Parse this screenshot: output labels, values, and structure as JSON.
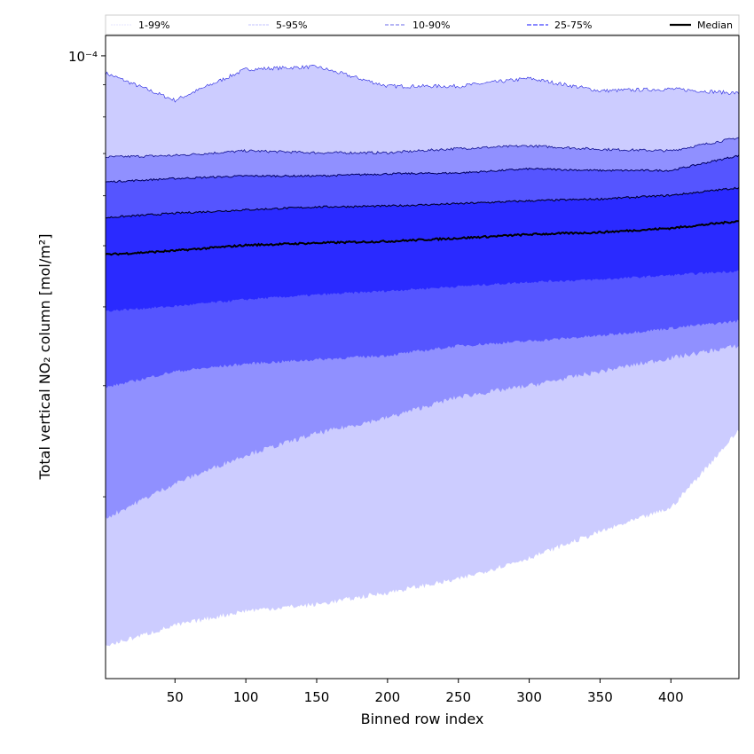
{
  "chart_data": {
    "type": "area",
    "title": "",
    "xlabel": "Binned row index",
    "ylabel": "Total vertical NO₂ column [mol/m²]",
    "yscale": "log",
    "xlim": [
      1,
      448
    ],
    "ylim": [
      1.03e-05,
      0.0001077
    ],
    "xticks": [
      50,
      100,
      150,
      200,
      250,
      300,
      350,
      400
    ],
    "xtick_labels": [
      "50",
      "100",
      "150",
      "200",
      "250",
      "300",
      "350",
      "400"
    ],
    "yticks_major": [
      0.0001
    ],
    "ytick_labels": [
      "10⁻⁴"
    ],
    "yticks_minor": [
      9e-05,
      8e-05,
      7e-05,
      6e-05,
      5e-05,
      4e-05,
      3e-05,
      2e-05
    ],
    "legend": {
      "placement": "top (above axes)",
      "entries": [
        "1-99%",
        "5-95%",
        "10-90%",
        "25-75%",
        "Median"
      ]
    },
    "colors": {
      "band_1_99": "#ccccff",
      "band_5_95": "#9090ff",
      "band_10_90": "#5555ff",
      "band_25_75": "#2a2aff",
      "median": "#000000"
    },
    "x": [
      1,
      50,
      100,
      150,
      200,
      250,
      300,
      350,
      400,
      448
    ],
    "series": [
      {
        "name": "p99",
        "values": [
          9.39e-05,
          8.5e-05,
          9.52e-05,
          9.61e-05,
          8.95e-05,
          8.95e-05,
          9.21e-05,
          8.8e-05,
          8.86e-05,
          8.72e-05
        ]
      },
      {
        "name": "p95",
        "values": [
          6.91e-05,
          6.95e-05,
          7.07e-05,
          7.02e-05,
          7.02e-05,
          7.13e-05,
          7.2e-05,
          7.11e-05,
          7.07e-05,
          7.42e-05
        ]
      },
      {
        "name": "p90",
        "values": [
          6.31e-05,
          6.39e-05,
          6.45e-05,
          6.45e-05,
          6.5e-05,
          6.52e-05,
          6.62e-05,
          6.58e-05,
          6.58e-05,
          6.95e-05
        ]
      },
      {
        "name": "p75",
        "values": [
          5.54e-05,
          5.63e-05,
          5.7e-05,
          5.76e-05,
          5.78e-05,
          5.83e-05,
          5.89e-05,
          5.93e-05,
          6.01e-05,
          6.18e-05
        ]
      },
      {
        "name": "Median",
        "values": [
          4.84e-05,
          4.91e-05,
          5.01e-05,
          5.05e-05,
          5.08e-05,
          5.14e-05,
          5.21e-05,
          5.25e-05,
          5.33e-05,
          5.47e-05
        ]
      },
      {
        "name": "p25",
        "values": [
          3.94e-05,
          4.01e-05,
          4.11e-05,
          4.18e-05,
          4.24e-05,
          4.31e-05,
          4.38e-05,
          4.42e-05,
          4.49e-05,
          4.56e-05
        ]
      },
      {
        "name": "p10",
        "values": [
          2.98e-05,
          3.16e-05,
          3.25e-05,
          3.3e-05,
          3.35e-05,
          3.47e-05,
          3.53e-05,
          3.6e-05,
          3.7e-05,
          3.8e-05
        ]
      },
      {
        "name": "p5",
        "values": [
          1.85e-05,
          2.1e-05,
          2.33e-05,
          2.52e-05,
          2.67e-05,
          2.88e-05,
          3e-05,
          3.16e-05,
          3.32e-05,
          3.47e-05
        ]
      },
      {
        "name": "p1",
        "values": [
          1.16e-05,
          1.25e-05,
          1.32e-05,
          1.35e-05,
          1.41e-05,
          1.48e-05,
          1.6e-05,
          1.76e-05,
          1.92e-05,
          2.55e-05
        ]
      }
    ]
  }
}
